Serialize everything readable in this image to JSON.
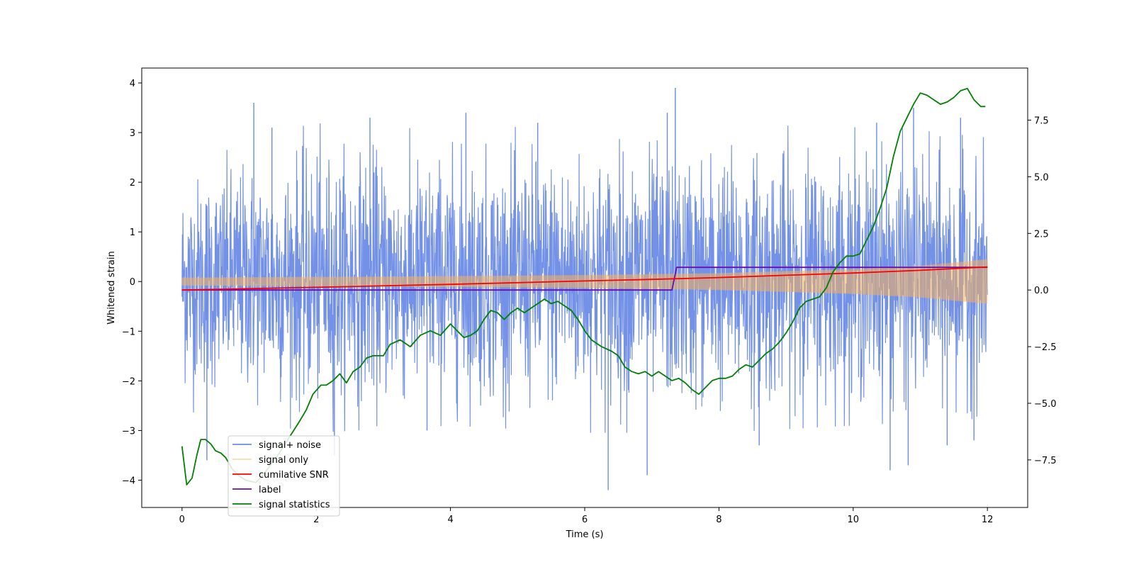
{
  "chart_data": {
    "type": "line",
    "xlabel": "Time (s)",
    "ylabel": "Whitened strain",
    "xlim": [
      -0.6,
      12.6
    ],
    "ylim": [
      -4.55,
      4.3
    ],
    "y2lim": [
      -9.6,
      9.8
    ],
    "x_ticks": [
      0,
      2,
      4,
      6,
      8,
      10,
      12
    ],
    "x_tick_labels": [
      "0",
      "2",
      "4",
      "6",
      "8",
      "10",
      "12"
    ],
    "y_ticks": [
      4,
      3,
      2,
      1,
      0,
      -1,
      -2,
      -3,
      -4
    ],
    "y_tick_labels": [
      "4",
      "3",
      "2",
      "1",
      "0",
      "−1",
      "−2",
      "−3",
      "−4"
    ],
    "y2_ticks": [
      7.5,
      5.0,
      2.5,
      0.0,
      -2.5,
      -5.0,
      -7.5
    ],
    "y2_tick_labels": [
      "7.5",
      "5.0",
      "2.5",
      "0.0",
      "−2.5",
      "−5.0",
      "−7.5"
    ],
    "legend_position": "lower-left",
    "colors": {
      "noise": "#6b8be6",
      "signal": "#f5b35c",
      "snr": "#ff0000",
      "label": "#6a0dad",
      "stat": "#008000"
    },
    "series": [
      {
        "name": "signal+ noise",
        "key": "noise",
        "axis": "left",
        "x_range": [
          0,
          12
        ],
        "band_lower": [
          [
            0,
            -1.8
          ],
          [
            2,
            -2.1
          ],
          [
            4,
            -2.0
          ],
          [
            6,
            -2.1
          ],
          [
            8,
            -2.1
          ],
          [
            10,
            -2.0
          ],
          [
            12,
            -1.9
          ]
        ],
        "band_upper": [
          [
            0,
            1.8
          ],
          [
            2,
            2.2
          ],
          [
            4,
            2.1
          ],
          [
            6,
            2.2
          ],
          [
            8,
            2.2
          ],
          [
            10,
            2.2
          ],
          [
            12,
            2.0
          ]
        ],
        "peaks": [
          [
            1.07,
            3.6
          ],
          [
            1.34,
            3.1
          ],
          [
            2.8,
            3.3
          ],
          [
            4.23,
            3.4
          ],
          [
            5.3,
            3.2
          ],
          [
            7.23,
            3.4
          ],
          [
            7.35,
            3.9
          ],
          [
            10.35,
            3.2
          ],
          [
            10.9,
            3.5
          ],
          [
            11.6,
            3.3
          ]
        ],
        "troughs": [
          [
            0.37,
            -3.6
          ],
          [
            2.27,
            -3.5
          ],
          [
            3.65,
            -3.0
          ],
          [
            6.35,
            -4.2
          ],
          [
            6.93,
            -3.9
          ],
          [
            8.6,
            -3.3
          ],
          [
            10.55,
            -3.8
          ],
          [
            10.82,
            -3.7
          ],
          [
            11.4,
            -3.3
          ],
          [
            11.8,
            -3.2
          ]
        ]
      },
      {
        "name": "signal only",
        "key": "signal",
        "axis": "left",
        "amplitude": [
          [
            0,
            0.08
          ],
          [
            3,
            0.1
          ],
          [
            6,
            0.13
          ],
          [
            8,
            0.17
          ],
          [
            10,
            0.25
          ],
          [
            11,
            0.32
          ],
          [
            12,
            0.45
          ]
        ]
      },
      {
        "name": "cumilative SNR",
        "key": "snr",
        "axis": "right",
        "points": [
          [
            0,
            0.0
          ],
          [
            2,
            0.12
          ],
          [
            4,
            0.25
          ],
          [
            6,
            0.4
          ],
          [
            7,
            0.47
          ],
          [
            8,
            0.55
          ],
          [
            9,
            0.65
          ],
          [
            10,
            0.75
          ],
          [
            11,
            0.87
          ],
          [
            12,
            1.02
          ]
        ]
      },
      {
        "name": "label",
        "key": "label",
        "axis": "right",
        "points": [
          [
            0,
            0.0
          ],
          [
            7.3,
            0.0
          ],
          [
            7.37,
            1.0
          ],
          [
            12,
            1.0
          ]
        ]
      },
      {
        "name": "signal statistics",
        "key": "stat",
        "axis": "right",
        "points": [
          [
            0,
            -6.9
          ],
          [
            0.07,
            -8.6
          ],
          [
            0.15,
            -8.3
          ],
          [
            0.22,
            -7.3
          ],
          [
            0.28,
            -6.6
          ],
          [
            0.35,
            -6.6
          ],
          [
            0.43,
            -6.8
          ],
          [
            0.5,
            -7.1
          ],
          [
            0.58,
            -7.2
          ],
          [
            0.65,
            -7.4
          ],
          [
            0.75,
            -7.9
          ],
          [
            0.85,
            -8.2
          ],
          [
            0.95,
            -8.4
          ],
          [
            1.1,
            -8.5
          ],
          [
            1.2,
            -8.2
          ],
          [
            1.3,
            -7.8
          ],
          [
            1.45,
            -7.2
          ],
          [
            1.6,
            -6.5
          ],
          [
            1.75,
            -5.8
          ],
          [
            1.85,
            -5.3
          ],
          [
            1.95,
            -4.6
          ],
          [
            2.07,
            -4.2
          ],
          [
            2.15,
            -4.2
          ],
          [
            2.25,
            -4.0
          ],
          [
            2.35,
            -3.7
          ],
          [
            2.45,
            -4.1
          ],
          [
            2.55,
            -3.6
          ],
          [
            2.65,
            -3.4
          ],
          [
            2.75,
            -3.0
          ],
          [
            2.85,
            -2.9
          ],
          [
            3.0,
            -2.9
          ],
          [
            3.1,
            -2.4
          ],
          [
            3.25,
            -2.2
          ],
          [
            3.4,
            -2.5
          ],
          [
            3.55,
            -2.0
          ],
          [
            3.7,
            -1.8
          ],
          [
            3.85,
            -2.0
          ],
          [
            4.0,
            -1.5
          ],
          [
            4.1,
            -1.8
          ],
          [
            4.2,
            -2.1
          ],
          [
            4.3,
            -2.0
          ],
          [
            4.4,
            -1.8
          ],
          [
            4.5,
            -1.3
          ],
          [
            4.6,
            -0.9
          ],
          [
            4.7,
            -1.0
          ],
          [
            4.8,
            -1.3
          ],
          [
            4.9,
            -1.0
          ],
          [
            5.0,
            -0.8
          ],
          [
            5.1,
            -1.0
          ],
          [
            5.2,
            -0.8
          ],
          [
            5.3,
            -0.6
          ],
          [
            5.4,
            -0.4
          ],
          [
            5.5,
            -0.6
          ],
          [
            5.6,
            -0.5
          ],
          [
            5.7,
            -0.7
          ],
          [
            5.8,
            -0.9
          ],
          [
            5.9,
            -1.3
          ],
          [
            6.0,
            -1.8
          ],
          [
            6.1,
            -2.2
          ],
          [
            6.25,
            -2.5
          ],
          [
            6.4,
            -2.7
          ],
          [
            6.5,
            -2.9
          ],
          [
            6.6,
            -3.4
          ],
          [
            6.7,
            -3.6
          ],
          [
            6.8,
            -3.7
          ],
          [
            6.9,
            -3.6
          ],
          [
            7.0,
            -3.8
          ],
          [
            7.1,
            -3.6
          ],
          [
            7.2,
            -3.8
          ],
          [
            7.3,
            -4.0
          ],
          [
            7.4,
            -3.9
          ],
          [
            7.5,
            -4.1
          ],
          [
            7.6,
            -4.4
          ],
          [
            7.7,
            -4.6
          ],
          [
            7.8,
            -4.3
          ],
          [
            7.9,
            -4.0
          ],
          [
            8.0,
            -3.9
          ],
          [
            8.1,
            -3.9
          ],
          [
            8.2,
            -3.8
          ],
          [
            8.3,
            -3.5
          ],
          [
            8.4,
            -3.3
          ],
          [
            8.5,
            -3.4
          ],
          [
            8.6,
            -3.1
          ],
          [
            8.7,
            -2.8
          ],
          [
            8.8,
            -2.6
          ],
          [
            8.9,
            -2.3
          ],
          [
            9.0,
            -1.9
          ],
          [
            9.1,
            -1.4
          ],
          [
            9.2,
            -0.8
          ],
          [
            9.3,
            -0.5
          ],
          [
            9.4,
            -0.4
          ],
          [
            9.5,
            -0.3
          ],
          [
            9.6,
            0.1
          ],
          [
            9.7,
            0.8
          ],
          [
            9.8,
            1.2
          ],
          [
            9.9,
            1.5
          ],
          [
            10.0,
            1.5
          ],
          [
            10.1,
            1.6
          ],
          [
            10.2,
            2.2
          ],
          [
            10.3,
            2.8
          ],
          [
            10.4,
            3.6
          ],
          [
            10.5,
            4.5
          ],
          [
            10.6,
            5.9
          ],
          [
            10.7,
            7.0
          ],
          [
            10.8,
            7.6
          ],
          [
            10.9,
            8.2
          ],
          [
            11.0,
            8.7
          ],
          [
            11.1,
            8.6
          ],
          [
            11.2,
            8.4
          ],
          [
            11.3,
            8.2
          ],
          [
            11.4,
            8.3
          ],
          [
            11.5,
            8.5
          ],
          [
            11.6,
            8.8
          ],
          [
            11.7,
            8.9
          ],
          [
            11.8,
            8.4
          ],
          [
            11.9,
            8.1
          ],
          [
            11.97,
            8.1
          ]
        ]
      }
    ]
  }
}
